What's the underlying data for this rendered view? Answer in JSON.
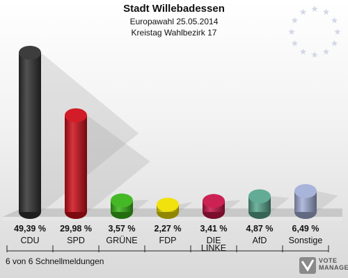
{
  "header": {
    "title": "Stadt Willebadessen",
    "subtitle": "Europawahl 25.05.2014",
    "subtitle2": "Kreistag Wahlbezirk 17"
  },
  "footer": {
    "text": "6 von 6 Schnellmeldungen"
  },
  "logo": {
    "line1": "VOTE",
    "line2": "MANAGER"
  },
  "chart_data": {
    "type": "bar",
    "title": "Stadt Willebadessen",
    "categories": [
      "CDU",
      "SPD",
      "GRÜNE",
      "FDP",
      "DIE LINKE",
      "AfD",
      "Sonstige"
    ],
    "category_lines": [
      [
        "CDU"
      ],
      [
        "SPD"
      ],
      [
        "GRÜNE"
      ],
      [
        "FDP"
      ],
      [
        "DIE",
        "LINKE"
      ],
      [
        "AfD"
      ],
      [
        "Sonstige"
      ]
    ],
    "values": [
      49.39,
      29.98,
      3.57,
      2.27,
      3.41,
      4.87,
      6.49
    ],
    "value_labels": [
      "49,39 %",
      "29,98 %",
      "3,57 %",
      "2,27 %",
      "3,41 %",
      "4,87 %",
      "6,49 %"
    ],
    "colors": [
      "#333333",
      "#d0101c",
      "#3bb51a",
      "#f0e000",
      "#c8154a",
      "#5aa88f",
      "#a4b0d8"
    ],
    "ylim": [
      0,
      50
    ],
    "xlabel": "",
    "ylabel": "",
    "grid": false
  }
}
